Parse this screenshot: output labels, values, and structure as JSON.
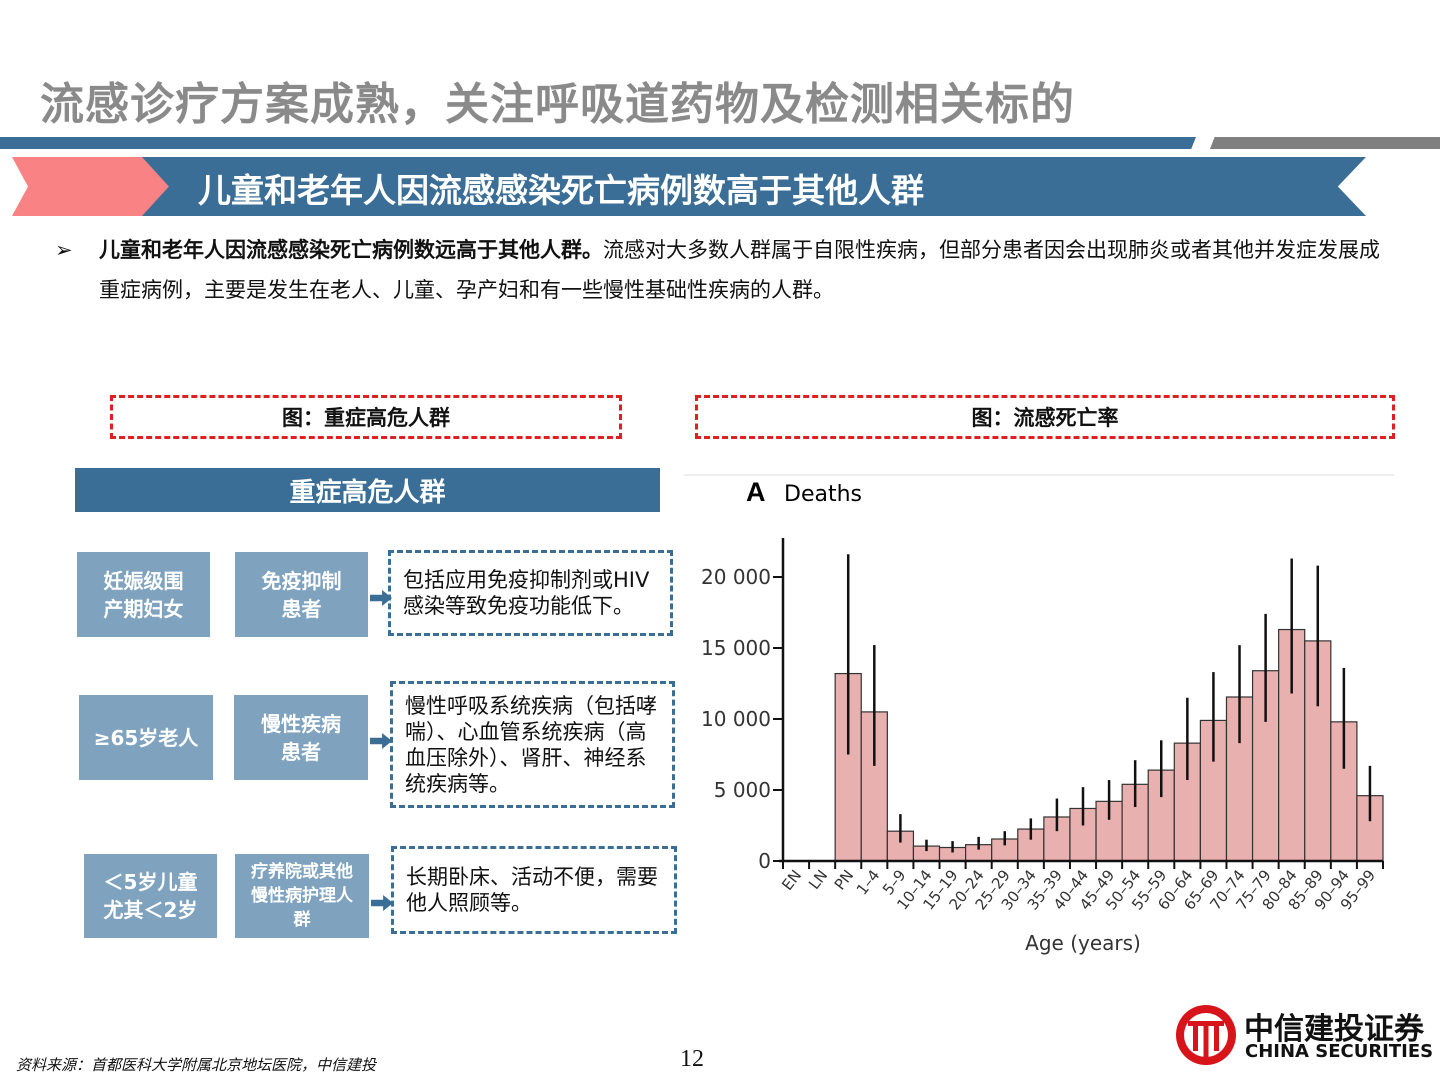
{
  "title": "流感诊疗方案成熟，关注呼吸道药物及检测相关标的",
  "banner": "儿童和老年人因流感感染死亡病例数高于其他人群",
  "bullet": {
    "mark": "➢",
    "bold": "儿童和老年人因流感感染死亡病例数远高于其他人群。",
    "text": "流感对大多数人群属于自限性疾病，但部分患者因会出现肺炎或者其他并发症发展成重症病例，主要是发生在老人、儿童、孕产妇和有一些慢性基础性疾病的人群。"
  },
  "captions": {
    "left": "图：重症高危人群",
    "right": "图：流感死亡率"
  },
  "risk": {
    "header": "重症高危人群",
    "groups": [
      {
        "label": "妊娠级围产期妇女",
        "detail_label": "免疫抑制患者",
        "detail": "包括应用免疫抑制剂或HIV感染等致免疫功能低下。"
      },
      {
        "label": "≥65岁老人",
        "detail_label": "慢性疾病患者",
        "detail": "慢性呼吸系统疾病（包括哮喘）、心血管系统疾病（高血压除外）、肾肝、神经系统疾病等。"
      },
      {
        "label": "＜5岁儿童尤其＜2岁",
        "detail_label": "疗养院或其他慢性病护理人群",
        "detail": "长期卧床、活动不便，需要他人照顾等。"
      }
    ]
  },
  "chart_data": {
    "type": "bar",
    "panel": "A",
    "title": "Deaths",
    "xlabel": "Age (years)",
    "ylabel": "",
    "ylim": [
      0,
      22000
    ],
    "yticks": [
      0,
      5000,
      10000,
      15000,
      20000
    ],
    "ytick_labels": [
      "0",
      "5 000",
      "10 000",
      "15 000",
      "20 000"
    ],
    "categories": [
      "EN",
      "LN",
      "PN",
      "1–4",
      "5–9",
      "10–14",
      "15–19",
      "20–24",
      "25–29",
      "30–34",
      "35–39",
      "40–44",
      "45–49",
      "50–54",
      "55–59",
      "60–64",
      "65–69",
      "70–74",
      "75–79",
      "80–84",
      "85–89",
      "90–94",
      "95–99"
    ],
    "values": [
      0,
      0,
      13200,
      10500,
      2100,
      1050,
      950,
      1150,
      1550,
      2250,
      3100,
      3700,
      4200,
      5400,
      6400,
      8300,
      9900,
      11550,
      13400,
      16300,
      15500,
      9800,
      4600
    ],
    "error_low": [
      0,
      0,
      7500,
      6700,
      1300,
      700,
      600,
      800,
      1100,
      1500,
      2100,
      2500,
      2900,
      3800,
      4500,
      5700,
      7000,
      8300,
      9800,
      11800,
      10900,
      6500,
      2800
    ],
    "error_high": [
      0,
      0,
      21600,
      15200,
      3300,
      1500,
      1400,
      1700,
      2100,
      3000,
      4400,
      5200,
      5700,
      7100,
      8500,
      11500,
      13300,
      15200,
      17400,
      21300,
      20800,
      13600,
      6700
    ],
    "colors": {
      "bar": "#e8b0ae",
      "edge": "#333333"
    }
  },
  "footer": {
    "source": "资料来源：首都医科大学附属北京地坛医院，中信建投",
    "page": "12"
  },
  "logo": {
    "cn": "中信建投证券",
    "en": "CHINA SECURITIES"
  },
  "colors": {
    "primary": "#3a6e96",
    "accent": "#f98284",
    "box": "#7fa3bf"
  }
}
